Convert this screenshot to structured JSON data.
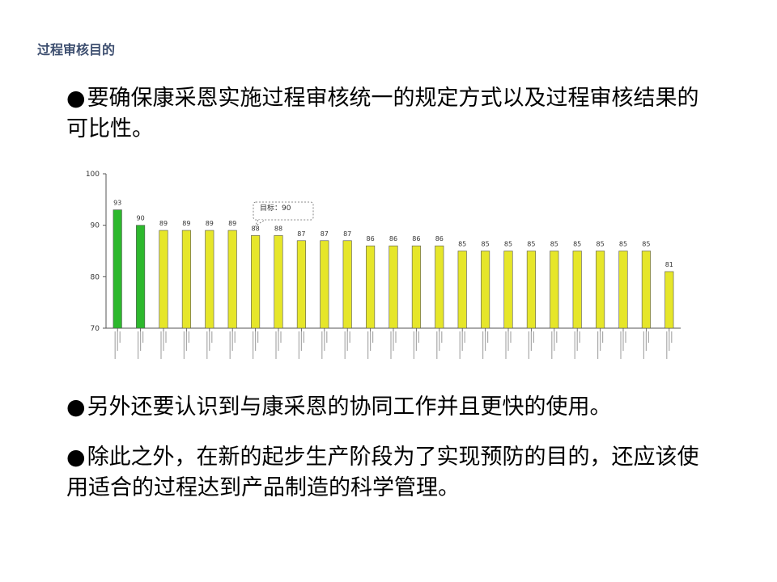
{
  "slide": {
    "title": "过程审核目的",
    "bullets": [
      {
        "dot": "●",
        "text": "要确保康采恩实施过程审核统一的规定方式以及过程审核结果的可比性。"
      },
      {
        "dot": "●",
        "text": "另外还要认识到与康采恩的协同工作并且更快的使用。"
      },
      {
        "dot": "●",
        "text": "除此之外，在新的起步生产阶段为了实现预防的目的，还应该使用适合的过程达到产品制造的科学管理。"
      }
    ]
  },
  "colors": {
    "green": "#2db82d",
    "yellow": "#e6e62a",
    "title": "#3e4f70"
  },
  "chart_data": {
    "type": "bar",
    "ylim": [
      70,
      100
    ],
    "yticks": [
      70,
      80,
      90,
      100
    ],
    "values": [
      93,
      90,
      89,
      89,
      89,
      89,
      88,
      88,
      87,
      87,
      87,
      86,
      86,
      86,
      86,
      85,
      85,
      85,
      85,
      85,
      85,
      85,
      85,
      85,
      81
    ],
    "bar_colors": [
      "green",
      "green",
      "yellow",
      "yellow",
      "yellow",
      "yellow",
      "yellow",
      "yellow",
      "yellow",
      "yellow",
      "yellow",
      "yellow",
      "yellow",
      "yellow",
      "yellow",
      "yellow",
      "yellow",
      "yellow",
      "yellow",
      "yellow",
      "yellow",
      "yellow",
      "yellow",
      "yellow",
      "yellow"
    ],
    "annotation": "目标：90",
    "grid": false,
    "legend": "none"
  }
}
